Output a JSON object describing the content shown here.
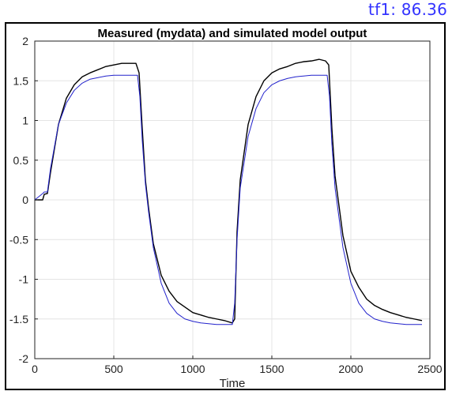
{
  "legend": {
    "label": "tf1: 86.36",
    "color": "#3333ff"
  },
  "chart_data": {
    "type": "line",
    "title": "Measured (mydata) and simulated model output",
    "xlabel": "Time",
    "ylabel": "",
    "xlim": [
      0,
      2500
    ],
    "ylim": [
      -2,
      2
    ],
    "xticks": [
      0,
      500,
      1000,
      1500,
      2000,
      2500
    ],
    "yticks": [
      -2,
      -1.5,
      -1,
      -0.5,
      0,
      0.5,
      1,
      1.5,
      2
    ],
    "grid": true,
    "legend_placement": "top-right outside",
    "series": [
      {
        "name": "",
        "color": "#000000",
        "description_kind": "measured (noisy)",
        "x": [
          0,
          50,
          60,
          80,
          100,
          150,
          200,
          250,
          300,
          350,
          400,
          450,
          500,
          550,
          600,
          640,
          660,
          680,
          700,
          720,
          750,
          800,
          850,
          900,
          950,
          1000,
          1050,
          1100,
          1150,
          1200,
          1250,
          1265,
          1280,
          1300,
          1350,
          1400,
          1450,
          1500,
          1550,
          1600,
          1650,
          1700,
          1750,
          1800,
          1840,
          1860,
          1880,
          1900,
          1950,
          2000,
          2050,
          2100,
          2150,
          2200,
          2250,
          2300,
          2350,
          2400,
          2450
        ],
        "y": [
          0.0,
          0.0,
          0.07,
          0.08,
          0.35,
          0.95,
          1.28,
          1.45,
          1.55,
          1.6,
          1.64,
          1.68,
          1.7,
          1.72,
          1.72,
          1.72,
          1.6,
          0.9,
          0.25,
          -0.1,
          -0.55,
          -0.95,
          -1.15,
          -1.28,
          -1.35,
          -1.42,
          -1.45,
          -1.48,
          -1.5,
          -1.52,
          -1.55,
          -1.5,
          -0.4,
          0.25,
          0.95,
          1.3,
          1.5,
          1.6,
          1.65,
          1.68,
          1.72,
          1.74,
          1.75,
          1.77,
          1.75,
          1.7,
          0.9,
          0.3,
          -0.45,
          -0.9,
          -1.1,
          -1.25,
          -1.33,
          -1.38,
          -1.42,
          -1.45,
          -1.48,
          -1.5,
          -1.52
        ]
      },
      {
        "name": "tf1: 86.36",
        "color": "#2222cc",
        "description_kind": "simulated",
        "x": [
          0,
          50,
          60,
          80,
          100,
          150,
          200,
          250,
          300,
          350,
          400,
          450,
          500,
          550,
          600,
          650,
          665,
          680,
          700,
          720,
          750,
          800,
          850,
          900,
          950,
          1000,
          1050,
          1100,
          1150,
          1200,
          1250,
          1265,
          1280,
          1300,
          1350,
          1400,
          1450,
          1500,
          1550,
          1600,
          1650,
          1700,
          1750,
          1800,
          1850,
          1865,
          1880,
          1900,
          1950,
          2000,
          2050,
          2100,
          2150,
          2200,
          2250,
          2300,
          2350,
          2400,
          2450
        ],
        "y": [
          0.0,
          0.08,
          0.1,
          0.1,
          0.4,
          0.95,
          1.22,
          1.38,
          1.47,
          1.52,
          1.54,
          1.56,
          1.57,
          1.57,
          1.57,
          1.57,
          1.3,
          0.75,
          0.2,
          -0.15,
          -0.6,
          -1.05,
          -1.3,
          -1.43,
          -1.5,
          -1.53,
          -1.55,
          -1.56,
          -1.57,
          -1.57,
          -1.57,
          -1.3,
          -0.5,
          0.15,
          0.8,
          1.15,
          1.35,
          1.45,
          1.5,
          1.53,
          1.55,
          1.56,
          1.57,
          1.57,
          1.57,
          1.3,
          0.7,
          0.15,
          -0.6,
          -1.05,
          -1.3,
          -1.43,
          -1.5,
          -1.53,
          -1.55,
          -1.56,
          -1.57,
          -1.57,
          -1.57
        ]
      }
    ]
  }
}
